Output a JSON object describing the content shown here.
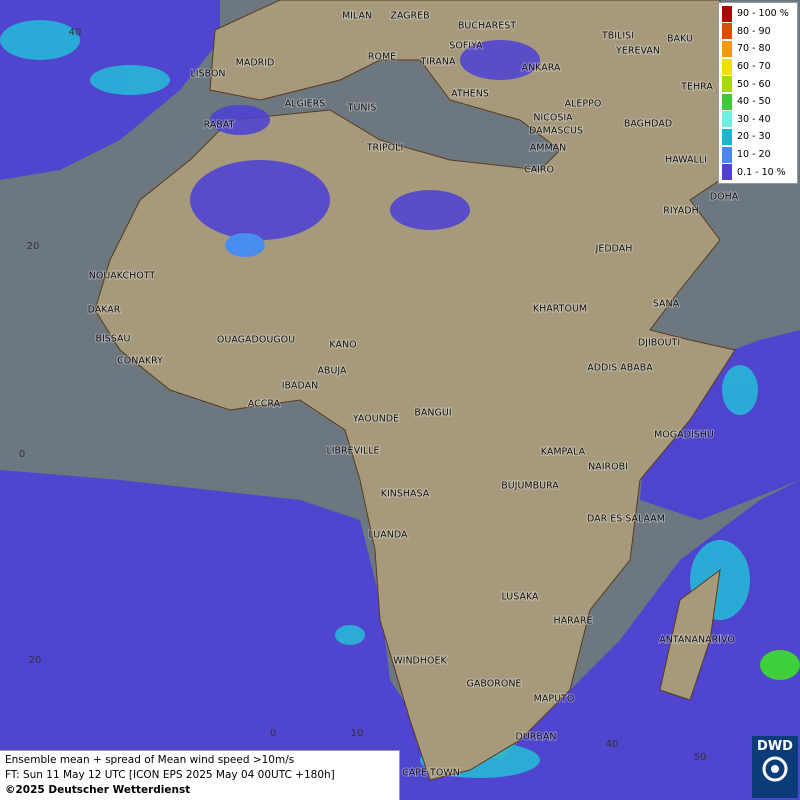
{
  "legend": {
    "items": [
      {
        "label": "90 - 100 %",
        "color": "#b00000"
      },
      {
        "label": "80 - 90",
        "color": "#e24a00"
      },
      {
        "label": "70 - 80",
        "color": "#f39a00"
      },
      {
        "label": "60 - 70",
        "color": "#f0e000"
      },
      {
        "label": "50 - 60",
        "color": "#a8dc00"
      },
      {
        "label": "40 - 50",
        "color": "#3ec83a"
      },
      {
        "label": "30 - 40",
        "color": "#6ef0e0"
      },
      {
        "label": "20 - 30",
        "color": "#18b8d0"
      },
      {
        "label": "10 - 20",
        "color": "#4a86f0"
      },
      {
        "label": "0.1 - 10 %",
        "color": "#5040d8"
      }
    ]
  },
  "cities": [
    "MILAN",
    "ZAGREB",
    "BUCHAREST",
    "MADRID",
    "ROME",
    "SOFIYA",
    "TBILISI",
    "BAKU",
    "YEREVAN",
    "LISBON",
    "TIRANA",
    "ANKARA",
    "TEHRA",
    "ATHENS",
    "ALGIERS",
    "TUNIS",
    "ALEPPO",
    "NICOSIA",
    "BAGHDAD",
    "RABAT",
    "DAMASCUS",
    "TRIPOLI",
    "AMMAN",
    "CAIRO",
    "HAWALLI",
    "DOHA",
    "RIYADH",
    "JEDDAH",
    "NOUAKCHOTT",
    "SANA",
    "DAKAR",
    "KHARTOUM",
    "BISSAU",
    "OUAGADOUGOU",
    "DJIBOUTI",
    "KANO",
    "CONAKRY",
    "ADDIS ABABA",
    "ABUJA",
    "IBADAN",
    "ACCRA",
    "BANGUI",
    "YAOUNDE",
    "MOGADISHU",
    "LIBREVILLE",
    "KAMPALA",
    "NAIROBI",
    "KINSHASA",
    "BUJUMBURA",
    "DAR ES SALAAM",
    "LUANDA",
    "LUSAKA",
    "HARARE",
    "ANTANANARIVO",
    "WINDHOEK",
    "GABORONE",
    "MAPUTO",
    "DURBAN",
    "CAPE TOWN"
  ],
  "grid_labels": [
    "40",
    "20",
    "0",
    "20",
    "0",
    "10",
    "40",
    "50"
  ],
  "footer": {
    "line1": "Ensemble mean + spread of Mean wind speed >10m/s",
    "line2": "FT: Sun 11 May 12 UTC [ICON EPS 2025 May 04 00UTC +180h]",
    "line3": "©2025 Deutscher Wetterdienst"
  },
  "logo": "DWD"
}
